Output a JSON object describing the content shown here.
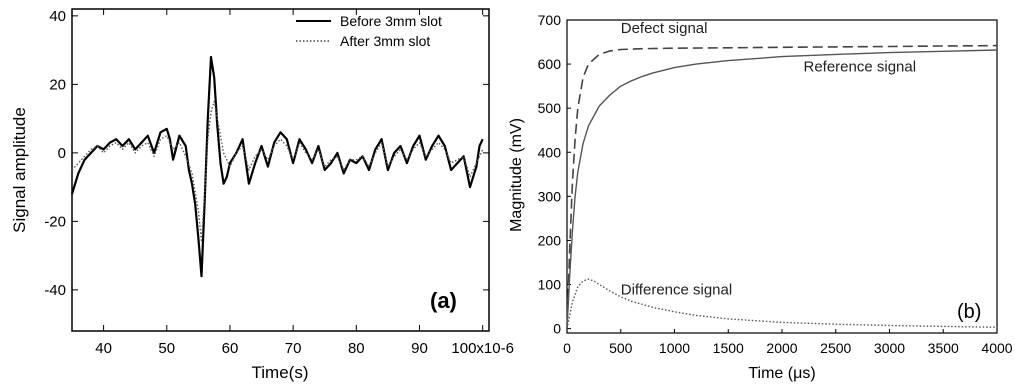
{
  "chart_data": [
    {
      "type": "line",
      "panel_label": "(a)",
      "xlabel": "Time(s)",
      "ylabel": "Signal amplitude",
      "xlim": [
        35,
        101
      ],
      "ylim": [
        -52,
        42
      ],
      "x_ticks": [
        40,
        50,
        60,
        70,
        80,
        90,
        100
      ],
      "x_tick_labels": [
        "40",
        "50",
        "60",
        "70",
        "80",
        "90",
        "100x10-6"
      ],
      "y_ticks": [
        40,
        20,
        0,
        -20,
        -40
      ],
      "y_tick_labels": [
        "40",
        "20",
        "0",
        "-20",
        "-40"
      ],
      "legend_position": "top-right",
      "grid": false,
      "series": [
        {
          "name": "Before 3mm slot",
          "style": "solid",
          "x": [
            35,
            36,
            37,
            38,
            39,
            40,
            41,
            42,
            43,
            44,
            45,
            46,
            47,
            48,
            49,
            50,
            50.5,
            51,
            52,
            53,
            53.5,
            54,
            54.5,
            55,
            55.5,
            56,
            56.5,
            57,
            57.5,
            58,
            58.5,
            59,
            59.5,
            60,
            61,
            62,
            63,
            64,
            65,
            66,
            67,
            68,
            69,
            70,
            71,
            72,
            73,
            74,
            75,
            76,
            77,
            78,
            79,
            80,
            81,
            82,
            83,
            84,
            85,
            86,
            87,
            88,
            89,
            90,
            91,
            92,
            93,
            94,
            95,
            96,
            97,
            98,
            99,
            99.5,
            100
          ],
          "values": [
            -12,
            -6,
            -2,
            0,
            2,
            1,
            3,
            4,
            2,
            4,
            1,
            3,
            5,
            0,
            6,
            7,
            4,
            -2,
            5,
            2,
            -5,
            -9,
            -15,
            -25,
            -36,
            -14,
            10,
            28,
            22,
            8,
            -3,
            -9,
            -7,
            -3,
            0,
            4,
            -9,
            -3,
            2,
            -4,
            3,
            6,
            4,
            -3,
            4,
            1,
            -3,
            2,
            -5,
            -3,
            0,
            -6,
            -2,
            -3,
            -1,
            -5,
            1,
            4,
            -5,
            0,
            2,
            -3,
            2,
            5,
            -2,
            2,
            5,
            2,
            -5,
            -3,
            -1,
            -10,
            -4,
            2,
            4
          ]
        },
        {
          "name": "After 3mm slot",
          "style": "dotted",
          "x": [
            35,
            36,
            37,
            38,
            39,
            40,
            41,
            42,
            43,
            44,
            45,
            46,
            47,
            48,
            49,
            50,
            51,
            52,
            53,
            54,
            55,
            55.5,
            56,
            56.5,
            57,
            57.5,
            58,
            59,
            60,
            61,
            62,
            63,
            64,
            65,
            66,
            67,
            68,
            69,
            70,
            71,
            72,
            73,
            74,
            75,
            76,
            77,
            78,
            79,
            80,
            81,
            82,
            83,
            84,
            85,
            86,
            87,
            88,
            89,
            90,
            91,
            92,
            93,
            94,
            95,
            96,
            97,
            98,
            99,
            100
          ],
          "values": [
            -5,
            -3,
            -1,
            1,
            2,
            0,
            2,
            3,
            1,
            3,
            0,
            2,
            3,
            -1,
            4,
            5,
            1,
            3,
            -1,
            -6,
            -17,
            -26,
            -12,
            4,
            12,
            15,
            10,
            0,
            -4,
            0,
            2,
            -5,
            -1,
            1,
            -2,
            2,
            4,
            2,
            -2,
            3,
            0,
            -2,
            1,
            -4,
            -2,
            -1,
            -5,
            -2,
            -2,
            -1,
            -4,
            0,
            3,
            -4,
            -1,
            1,
            -2,
            1,
            3,
            -1,
            1,
            3,
            1,
            -3,
            -2,
            -1,
            -7,
            -3,
            1
          ]
        }
      ]
    },
    {
      "type": "line",
      "panel_label": "(b)",
      "xlabel": "Time (μs)",
      "ylabel": "Magnitude (mV)",
      "xlim": [
        0,
        4000
      ],
      "ylim": [
        -10,
        700
      ],
      "x_ticks": [
        0,
        500,
        1000,
        1500,
        2000,
        2500,
        3000,
        3500,
        4000
      ],
      "x_tick_labels": [
        "0",
        "500",
        "1000",
        "1500",
        "2000",
        "2500",
        "3000",
        "3500",
        "4000"
      ],
      "y_ticks": [
        0,
        100,
        200,
        300,
        400,
        500,
        600,
        700
      ],
      "y_tick_labels": [
        "0",
        "100",
        "200",
        "300",
        "400",
        "500",
        "600",
        "700"
      ],
      "grid": false,
      "series": [
        {
          "name": "Defect signal",
          "style": "dashed",
          "x": [
            0,
            25,
            50,
            75,
            100,
            150,
            200,
            300,
            400,
            500,
            700,
            1000,
            1500,
            2000,
            2500,
            3000,
            3500,
            4000
          ],
          "values": [
            0,
            180,
            330,
            430,
            500,
            570,
            600,
            622,
            630,
            633,
            635,
            636,
            637,
            638,
            639,
            640,
            641,
            642
          ]
        },
        {
          "name": "Reference signal",
          "style": "solid",
          "x": [
            0,
            25,
            50,
            75,
            100,
            150,
            200,
            300,
            400,
            500,
            600,
            700,
            800,
            1000,
            1200,
            1500,
            2000,
            2500,
            3000,
            3500,
            4000
          ],
          "values": [
            0,
            120,
            220,
            300,
            355,
            420,
            460,
            505,
            530,
            550,
            562,
            572,
            580,
            592,
            600,
            608,
            617,
            622,
            626,
            629,
            632
          ]
        },
        {
          "name": "Difference signal",
          "style": "dotted",
          "x": [
            0,
            50,
            100,
            150,
            200,
            250,
            300,
            400,
            500,
            600,
            800,
            1000,
            1200,
            1500,
            2000,
            2500,
            3000,
            3500,
            4000
          ],
          "values": [
            0,
            60,
            95,
            108,
            112,
            108,
            100,
            85,
            72,
            62,
            48,
            38,
            30,
            22,
            14,
            10,
            7,
            5,
            3
          ]
        }
      ],
      "annotations": [
        {
          "text": "Defect signal",
          "x": 500,
          "y": 670
        },
        {
          "text": "Reference signal",
          "x": 2200,
          "y": 583
        },
        {
          "text": "Difference signal",
          "x": 500,
          "y": 77
        }
      ]
    }
  ]
}
